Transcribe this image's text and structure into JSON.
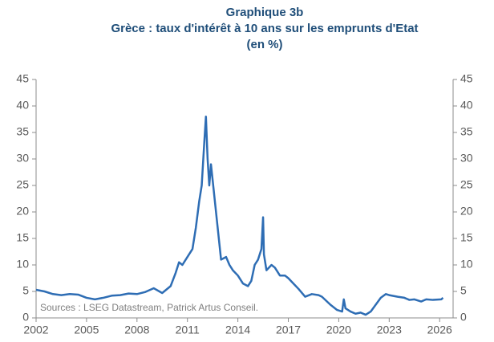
{
  "chart_data": {
    "type": "line",
    "title": "Graphique 3b",
    "subtitle": "Grèce : taux d'intérêt à 10 ans sur les emprunts d'Etat",
    "unit": "(en %)",
    "annotation": "Sources : LSEG Datastream, Patrick Artus Conseil.",
    "x": [
      2002,
      2002.5,
      2003,
      2003.5,
      2004,
      2004.5,
      2005,
      2005.5,
      2006,
      2006.5,
      2007,
      2007.5,
      2008,
      2008.5,
      2009,
      2009.5,
      2010,
      2010.3,
      2010.5,
      2010.7,
      2011,
      2011.3,
      2011.5,
      2011.7,
      2011.85,
      2012,
      2012.1,
      2012.2,
      2012.3,
      2012.4,
      2012.5,
      2012.7,
      2012.9,
      2013,
      2013.3,
      2013.5,
      2013.7,
      2014,
      2014.3,
      2014.6,
      2014.8,
      2015,
      2015.2,
      2015.4,
      2015.5,
      2015.55,
      2015.7,
      2016,
      2016.2,
      2016.5,
      2016.8,
      2017,
      2017.3,
      2017.6,
      2018,
      2018.4,
      2018.8,
      2019,
      2019.5,
      2019.9,
      2020.2,
      2020.3,
      2020.4,
      2020.7,
      2021,
      2021.3,
      2021.6,
      2021.9,
      2022.2,
      2022.5,
      2022.8,
      2023,
      2023.5,
      2023.9,
      2024.2,
      2024.5,
      2024.9,
      2025.2,
      2025.6,
      2026.1,
      2026.2
    ],
    "series": [
      {
        "name": "Grèce",
        "color": "#2e6db4",
        "values": [
          5.3,
          5.0,
          4.5,
          4.3,
          4.5,
          4.4,
          3.8,
          3.5,
          3.8,
          4.2,
          4.3,
          4.6,
          4.5,
          4.9,
          5.6,
          4.7,
          6.0,
          8.5,
          10.5,
          10.0,
          11.5,
          13,
          17,
          22,
          25,
          33,
          38,
          30,
          25,
          29,
          26,
          20,
          14,
          11,
          11.5,
          10,
          9,
          8,
          6.5,
          6,
          7,
          10,
          11,
          13,
          19,
          12,
          9,
          10,
          9.5,
          8,
          8,
          7.5,
          6.5,
          5.5,
          4,
          4.5,
          4.3,
          4.0,
          2.5,
          1.5,
          1.2,
          3.5,
          1.8,
          1.2,
          0.8,
          1.0,
          0.6,
          1.2,
          2.5,
          3.8,
          4.5,
          4.3,
          4.0,
          3.8,
          3.4,
          3.5,
          3.1,
          3.5,
          3.4,
          3.5,
          3.8
        ]
      }
    ],
    "xlim": [
      2002,
      2026.8
    ],
    "xticks": [
      2002,
      2005,
      2008,
      2011,
      2014,
      2017,
      2020,
      2023,
      2026
    ],
    "ylim": [
      0,
      45
    ],
    "yticks": [
      0,
      5,
      10,
      15,
      20,
      25,
      30,
      35,
      40,
      45
    ],
    "y2lim": [
      0,
      45
    ],
    "y2ticks": [
      0,
      5,
      10,
      15,
      20,
      25,
      30,
      35,
      40,
      45
    ],
    "grid": false
  }
}
